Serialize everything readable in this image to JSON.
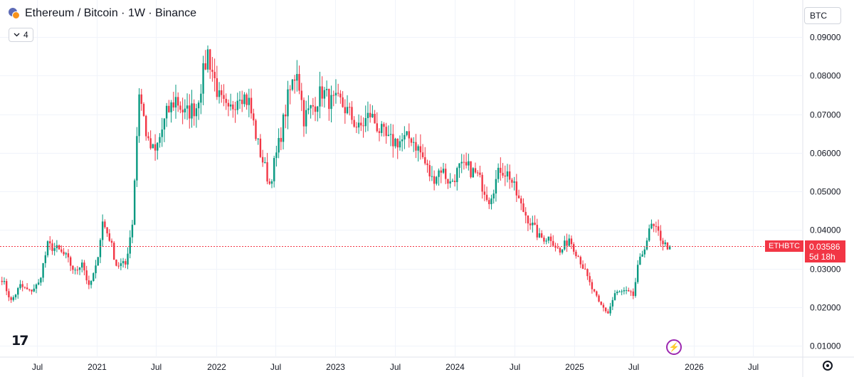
{
  "header": {
    "title": "Ethereum / Bitcoin · 1W · Binance",
    "indicator_count": "4",
    "currency": "BTC"
  },
  "price_label": {
    "symbol": "ETHBTC",
    "price": "0.03586",
    "countdown": "5d 18h"
  },
  "icons": {
    "indicator_toggle": "chevron-down-icon",
    "logo": "tradingview-logo-icon",
    "bolt": "lightning-icon",
    "settings": "gear-icon"
  },
  "colors": {
    "up": "#089981",
    "down": "#f23645",
    "price_line": "#f23645",
    "grid": "#f0f3fa",
    "bolt": "#9c27b0"
  },
  "chart_data": {
    "type": "candlestick",
    "title": "Ethereum / Bitcoin · 1W · Binance",
    "ylim": [
      0.01,
      0.09
    ],
    "y_scale": "linear",
    "yticks": [
      0.01,
      0.02,
      0.03,
      0.04,
      0.05,
      0.06,
      0.07,
      0.08,
      0.09
    ],
    "ytick_labels": [
      "0.01000",
      "0.02000",
      "0.03000",
      "0.04000",
      "0.05000",
      "0.06000",
      "0.07000",
      "0.08000",
      "0.09000"
    ],
    "xlim": [
      "2020-03-10",
      "2026-12-01"
    ],
    "xticks": [
      {
        "label": "Jul",
        "date": "2020-07-01"
      },
      {
        "label": "2021",
        "date": "2021-01-01"
      },
      {
        "label": "Jul",
        "date": "2021-07-01"
      },
      {
        "label": "2022",
        "date": "2022-01-01"
      },
      {
        "label": "Jul",
        "date": "2022-07-01"
      },
      {
        "label": "2023",
        "date": "2023-01-01"
      },
      {
        "label": "Jul",
        "date": "2023-07-01"
      },
      {
        "label": "2024",
        "date": "2024-01-01"
      },
      {
        "label": "Jul",
        "date": "2024-07-01"
      },
      {
        "label": "2025",
        "date": "2025-01-01"
      },
      {
        "label": "Jul",
        "date": "2025-07-01"
      },
      {
        "label": "2026",
        "date": "2026-01-01"
      },
      {
        "label": "Jul",
        "date": "2026-07-01"
      }
    ],
    "grid": true,
    "last_price": 0.03586,
    "series": [
      {
        "start": "2020-03-16",
        "interval": "1W",
        "anchors": [
          [
            "2020-03-16",
            0.0275
          ],
          [
            "2020-04-13",
            0.0215
          ],
          [
            "2020-05-11",
            0.0255
          ],
          [
            "2020-06-08",
            0.024
          ],
          [
            "2020-07-06",
            0.026
          ],
          [
            "2020-08-03",
            0.036
          ],
          [
            "2020-08-31",
            0.035
          ],
          [
            "2020-09-28",
            0.033
          ],
          [
            "2020-10-26",
            0.029
          ],
          [
            "2020-11-16",
            0.032
          ],
          [
            "2020-12-07",
            0.025
          ],
          [
            "2020-12-28",
            0.03
          ],
          [
            "2021-01-18",
            0.042
          ],
          [
            "2021-02-08",
            0.038
          ],
          [
            "2021-03-01",
            0.031
          ],
          [
            "2021-03-29",
            0.031
          ],
          [
            "2021-04-19",
            0.042
          ],
          [
            "2021-05-10",
            0.076
          ],
          [
            "2021-06-07",
            0.062
          ],
          [
            "2021-06-28",
            0.06
          ],
          [
            "2021-08-02",
            0.07
          ],
          [
            "2021-08-30",
            0.074
          ],
          [
            "2021-09-27",
            0.07
          ],
          [
            "2021-11-01",
            0.072
          ],
          [
            "2021-12-06",
            0.086
          ],
          [
            "2022-01-10",
            0.074
          ],
          [
            "2022-02-07",
            0.07
          ],
          [
            "2022-03-14",
            0.076
          ],
          [
            "2022-04-11",
            0.073
          ],
          [
            "2022-05-09",
            0.062
          ],
          [
            "2022-06-13",
            0.052
          ],
          [
            "2022-07-11",
            0.062
          ],
          [
            "2022-08-08",
            0.074
          ],
          [
            "2022-09-05",
            0.082
          ],
          [
            "2022-09-26",
            0.069
          ],
          [
            "2022-10-24",
            0.072
          ],
          [
            "2022-11-21",
            0.076
          ],
          [
            "2022-12-19",
            0.073
          ],
          [
            "2023-01-16",
            0.073
          ],
          [
            "2023-02-13",
            0.07
          ],
          [
            "2023-03-13",
            0.066
          ],
          [
            "2023-04-17",
            0.07
          ],
          [
            "2023-05-15",
            0.066
          ],
          [
            "2023-06-12",
            0.063
          ],
          [
            "2023-07-17",
            0.063
          ],
          [
            "2023-08-21",
            0.064
          ],
          [
            "2023-09-18",
            0.06
          ],
          [
            "2023-10-23",
            0.053
          ],
          [
            "2023-11-20",
            0.056
          ],
          [
            "2023-12-18",
            0.052
          ],
          [
            "2024-01-15",
            0.056
          ],
          [
            "2024-02-12",
            0.056
          ],
          [
            "2024-03-11",
            0.054
          ],
          [
            "2024-04-15",
            0.048
          ],
          [
            "2024-05-20",
            0.056
          ],
          [
            "2024-06-17",
            0.054
          ],
          [
            "2024-07-22",
            0.046
          ],
          [
            "2024-08-19",
            0.042
          ],
          [
            "2024-09-16",
            0.038
          ],
          [
            "2024-10-21",
            0.038
          ],
          [
            "2024-11-18",
            0.034
          ],
          [
            "2024-12-16",
            0.038
          ],
          [
            "2025-01-20",
            0.032
          ],
          [
            "2025-02-17",
            0.026
          ],
          [
            "2025-03-17",
            0.021
          ],
          [
            "2025-04-14",
            0.0185
          ],
          [
            "2025-05-05",
            0.0235
          ],
          [
            "2025-06-02",
            0.024
          ],
          [
            "2025-06-30",
            0.023
          ],
          [
            "2025-07-14",
            0.03
          ],
          [
            "2025-08-04",
            0.036
          ],
          [
            "2025-08-25",
            0.041
          ],
          [
            "2025-09-15",
            0.039
          ],
          [
            "2025-10-06",
            0.036
          ],
          [
            "2025-10-20",
            0.0359
          ]
        ]
      }
    ]
  }
}
